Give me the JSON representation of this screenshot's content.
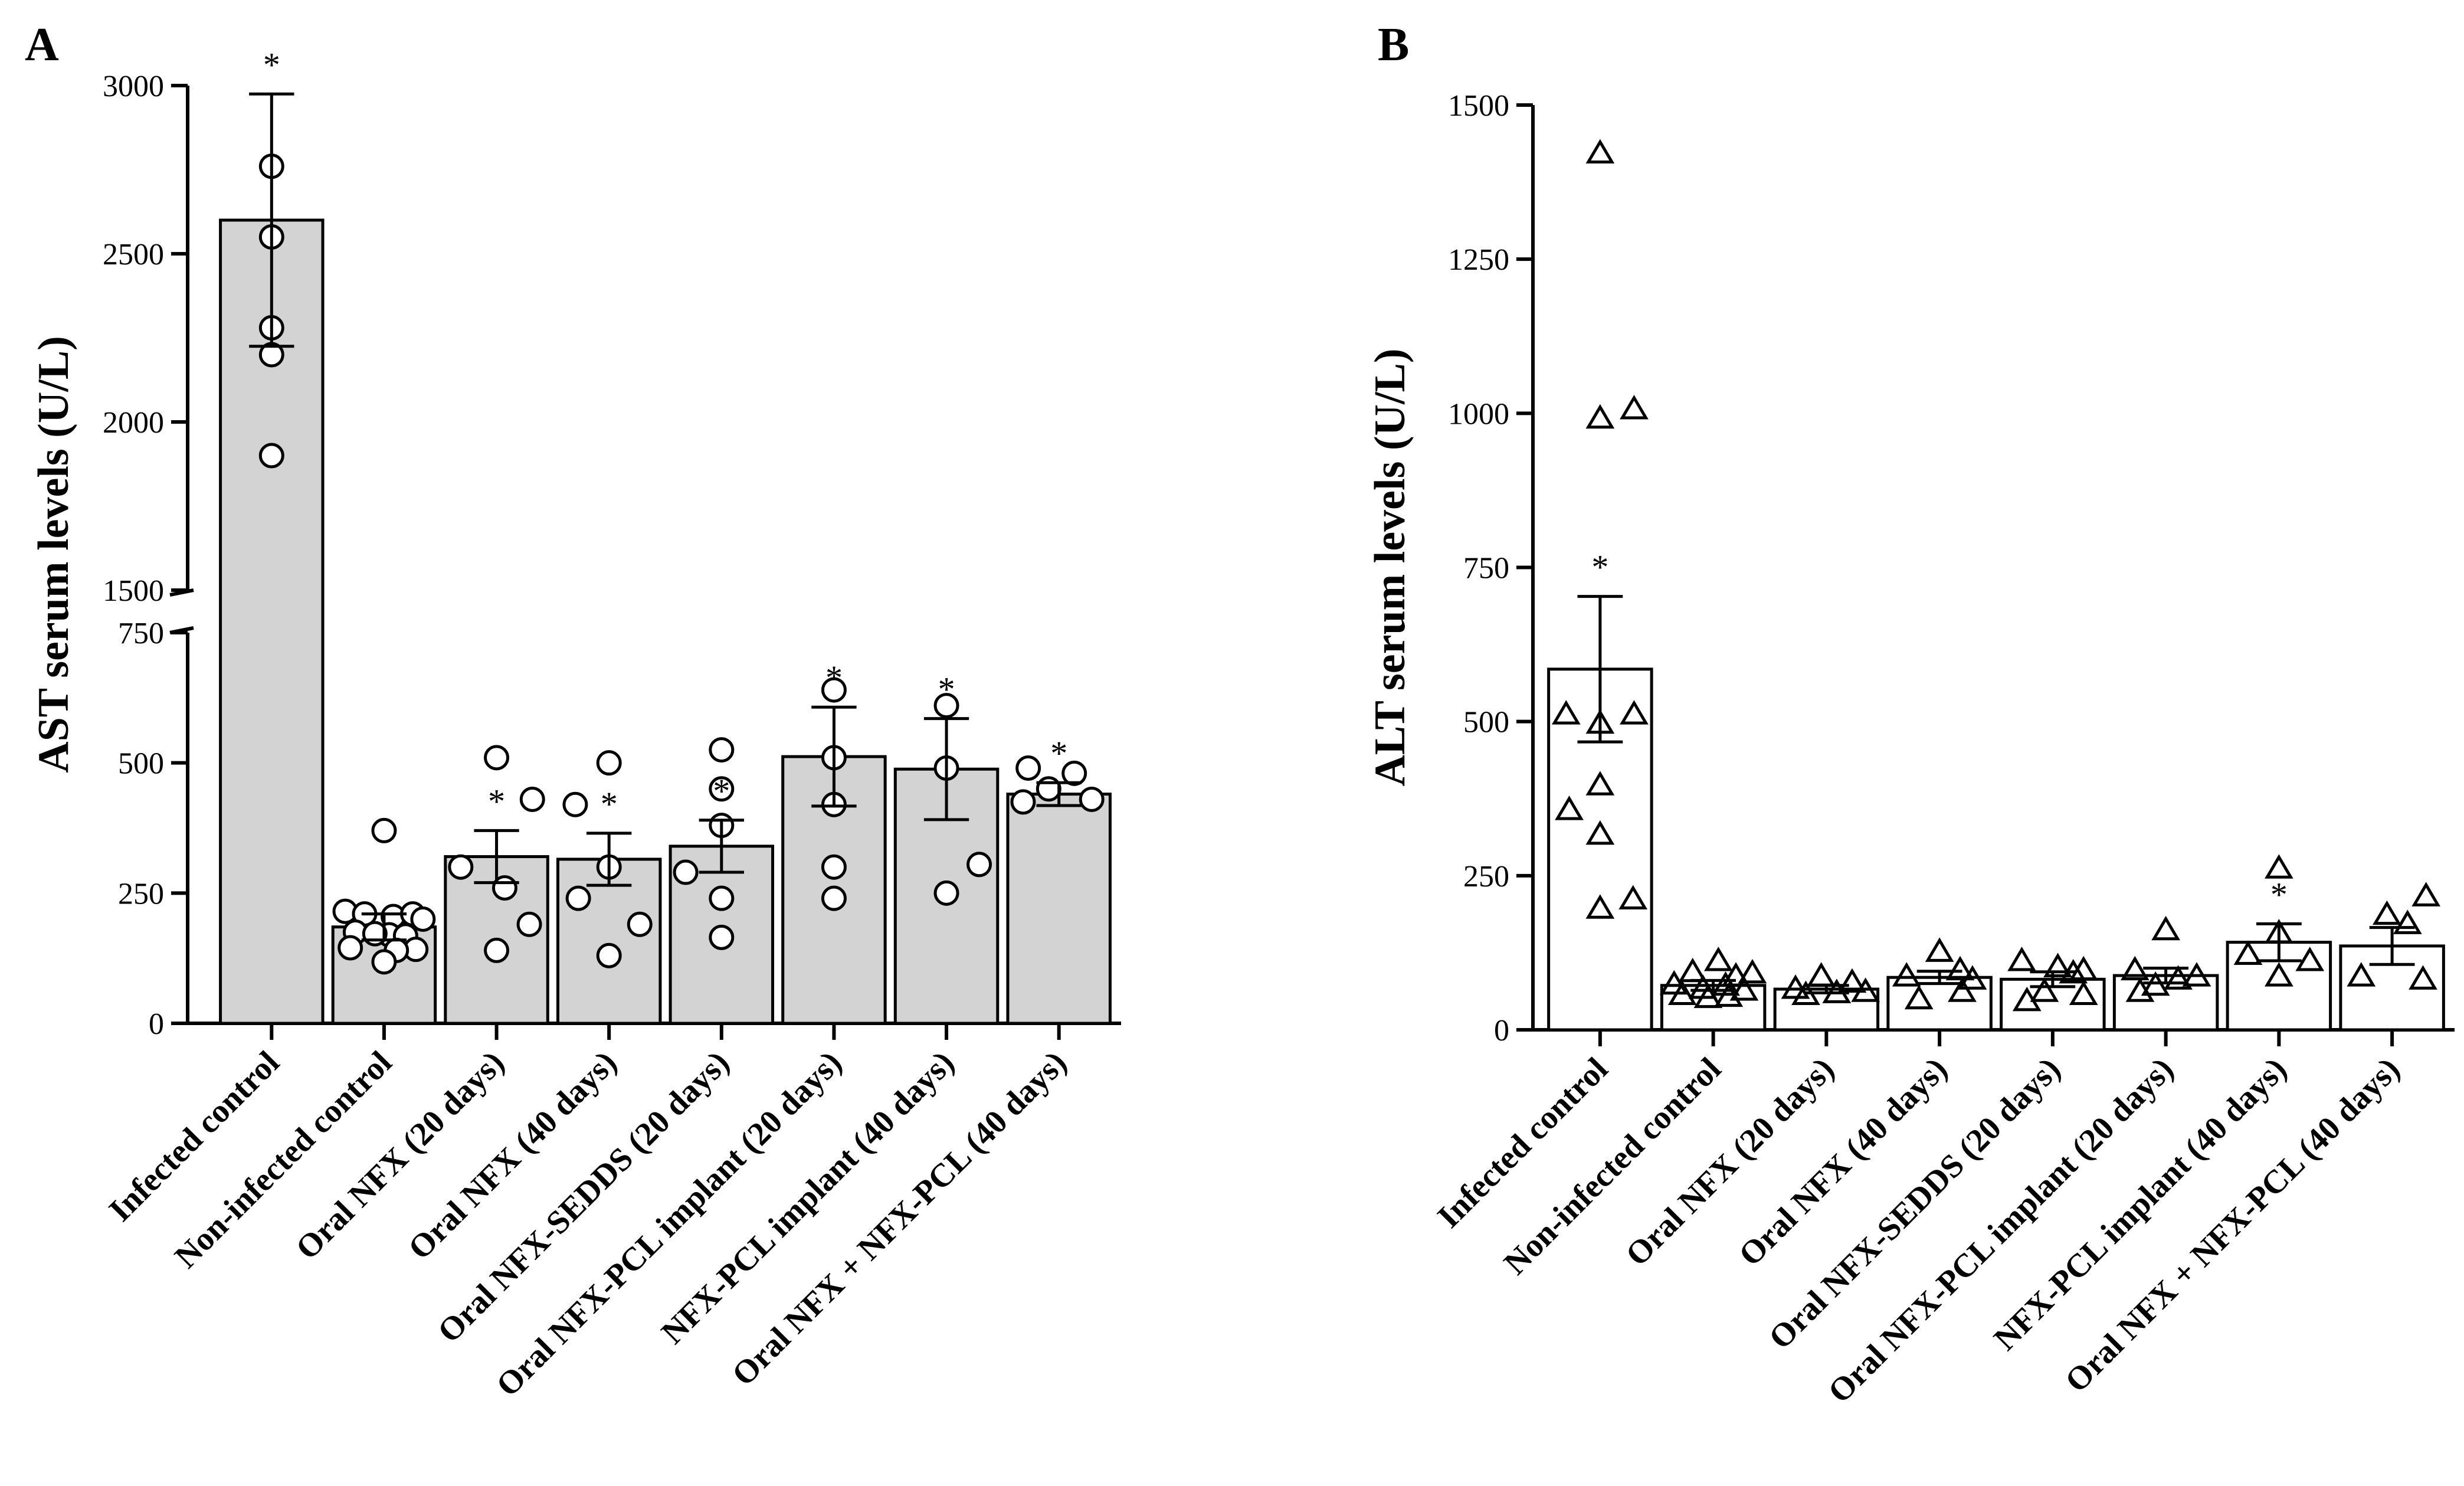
{
  "chart_data": [
    {
      "panel": "A",
      "type": "bar",
      "ylabel": "AST serum levels (U/L)",
      "xlabel": "",
      "axis_break": {
        "lower_range": [
          0,
          750
        ],
        "upper_range": [
          1500,
          3000
        ]
      },
      "yticks_lower": [
        "0",
        "250",
        "500",
        "750"
      ],
      "yticks_upper": [
        "1500",
        "2000",
        "2500",
        "3000"
      ],
      "categories": [
        "Infected control",
        "Non-infected control",
        "Oral NFX (20 days)",
        "Oral NFX (40 days)",
        "Oral NFX-SEDDS (20 days)",
        "Oral NFX-PCL implant (20 days)",
        "NFX-PCL implant (40 days)",
        "Oral NFX + NFX-PCL (40 days)"
      ],
      "values": [
        2600,
        185,
        320,
        315,
        340,
        512,
        488,
        440
      ],
      "error": [
        375,
        25,
        50,
        50,
        50,
        95,
        97,
        22
      ],
      "significance": [
        "*",
        "",
        "*",
        "*",
        "*",
        "*",
        "*",
        "*"
      ],
      "points": [
        [
          [
            2280,
            0
          ],
          [
            2200,
            0
          ],
          [
            2550,
            0
          ],
          [
            2760,
            0
          ],
          [
            1900,
            0
          ]
        ],
        [
          [
            370,
            0
          ],
          [
            215,
            -0.38
          ],
          [
            210,
            -0.19
          ],
          [
            205,
            0.09
          ],
          [
            210,
            0.28
          ],
          [
            200,
            0.38
          ],
          [
            175,
            -0.28
          ],
          [
            170,
            0.05
          ],
          [
            168,
            0.21
          ],
          [
            172,
            -0.09
          ],
          [
            145,
            -0.33
          ],
          [
            142,
            0.31
          ],
          [
            140,
            0.12
          ],
          [
            118,
            0
          ]
        ],
        [
          [
            510,
            0
          ],
          [
            430,
            0.35
          ],
          [
            300,
            -0.35
          ],
          [
            260,
            0.08
          ],
          [
            190,
            0.32
          ],
          [
            140,
            0
          ]
        ],
        [
          [
            500,
            0
          ],
          [
            420,
            -0.33
          ],
          [
            300,
            0
          ],
          [
            240,
            -0.3
          ],
          [
            190,
            0.3
          ],
          [
            130,
            0
          ]
        ],
        [
          [
            525,
            0
          ],
          [
            450,
            0
          ],
          [
            380,
            0
          ],
          [
            290,
            -0.35
          ],
          [
            240,
            0
          ],
          [
            165,
            0
          ]
        ],
        [
          [
            640,
            0
          ],
          [
            510,
            0
          ],
          [
            420,
            0
          ],
          [
            300,
            0
          ],
          [
            240,
            0
          ]
        ],
        [
          [
            610,
            0
          ],
          [
            490,
            0
          ],
          [
            305,
            0.32
          ],
          [
            250,
            0
          ]
        ],
        [
          [
            490,
            -0.3
          ],
          [
            480,
            0.15
          ],
          [
            450,
            -0.1
          ],
          [
            430,
            0.32
          ],
          [
            425,
            -0.35
          ]
        ]
      ],
      "fill": "#d3d3d3",
      "marker": "circle"
    },
    {
      "panel": "B",
      "type": "bar",
      "ylabel": "ALT serum levels (U/L)",
      "xlabel": "",
      "ylim": [
        0,
        1500
      ],
      "yticks": [
        "0",
        "250",
        "500",
        "750",
        "1000",
        "1250",
        "1500"
      ],
      "categories": [
        "Infected control",
        "Non-infected control",
        "Oral NFX (20 days)",
        "Oral NFX (40 days)",
        "Oral NFX-SEDDS (20 days)",
        "Oral NFX-PCL implant (20 days)",
        "NFX-PCL implant (40 days)",
        "Oral NFX + NFX-PCL (40 days)"
      ],
      "values": [
        585,
        72,
        66,
        85,
        82,
        88,
        142,
        136
      ],
      "error": [
        118,
        8,
        6,
        10,
        12,
        12,
        30,
        30
      ],
      "significance": [
        "*",
        "",
        "",
        "",
        "",
        "",
        "*",
        ""
      ],
      "points": [
        [
          [
            1420,
            0
          ],
          [
            1005,
            0.33
          ],
          [
            990,
            0
          ],
          [
            510,
            -0.33
          ],
          [
            510,
            0.33
          ],
          [
            495,
            0
          ],
          [
            395,
            0
          ],
          [
            355,
            -0.3
          ],
          [
            315,
            0
          ],
          [
            210,
            0.32
          ],
          [
            195,
            0
          ]
        ],
        [
          [
            110,
            0.05
          ],
          [
            92,
            -0.2
          ],
          [
            90,
            0.38
          ],
          [
            85,
            0.22
          ],
          [
            72,
            -0.38
          ],
          [
            70,
            0.12
          ],
          [
            65,
            -0.1
          ],
          [
            62,
            0.3
          ],
          [
            55,
            -0.3
          ],
          [
            52,
            0.15
          ],
          [
            50,
            -0.05
          ]
        ],
        [
          [
            85,
            -0.05
          ],
          [
            75,
            0.25
          ],
          [
            65,
            -0.3
          ],
          [
            60,
            0.38
          ],
          [
            58,
            0.1
          ],
          [
            55,
            -0.2
          ]
        ],
        [
          [
            125,
            0
          ],
          [
            95,
            0.2
          ],
          [
            85,
            -0.32
          ],
          [
            80,
            0.32
          ],
          [
            60,
            0.22
          ],
          [
            48,
            -0.2
          ]
        ],
        [
          [
            110,
            -0.3
          ],
          [
            100,
            0.05
          ],
          [
            95,
            0.3
          ],
          [
            90,
            0.2
          ],
          [
            60,
            -0.08
          ],
          [
            55,
            0.3
          ],
          [
            45,
            -0.25
          ]
        ],
        [
          [
            160,
            0
          ],
          [
            95,
            -0.3
          ],
          [
            85,
            0.3
          ],
          [
            80,
            0.12
          ],
          [
            70,
            -0.1
          ],
          [
            60,
            -0.25
          ]
        ],
        [
          [
            260,
            0
          ],
          [
            155,
            0
          ],
          [
            120,
            -0.3
          ],
          [
            110,
            0.3
          ],
          [
            85,
            0
          ]
        ],
        [
          [
            215,
            0.33
          ],
          [
            185,
            -0.05
          ],
          [
            170,
            0.15
          ],
          [
            85,
            -0.3
          ],
          [
            80,
            0.3
          ]
        ]
      ],
      "fill": "#ffffff",
      "marker": "triangle"
    }
  ]
}
